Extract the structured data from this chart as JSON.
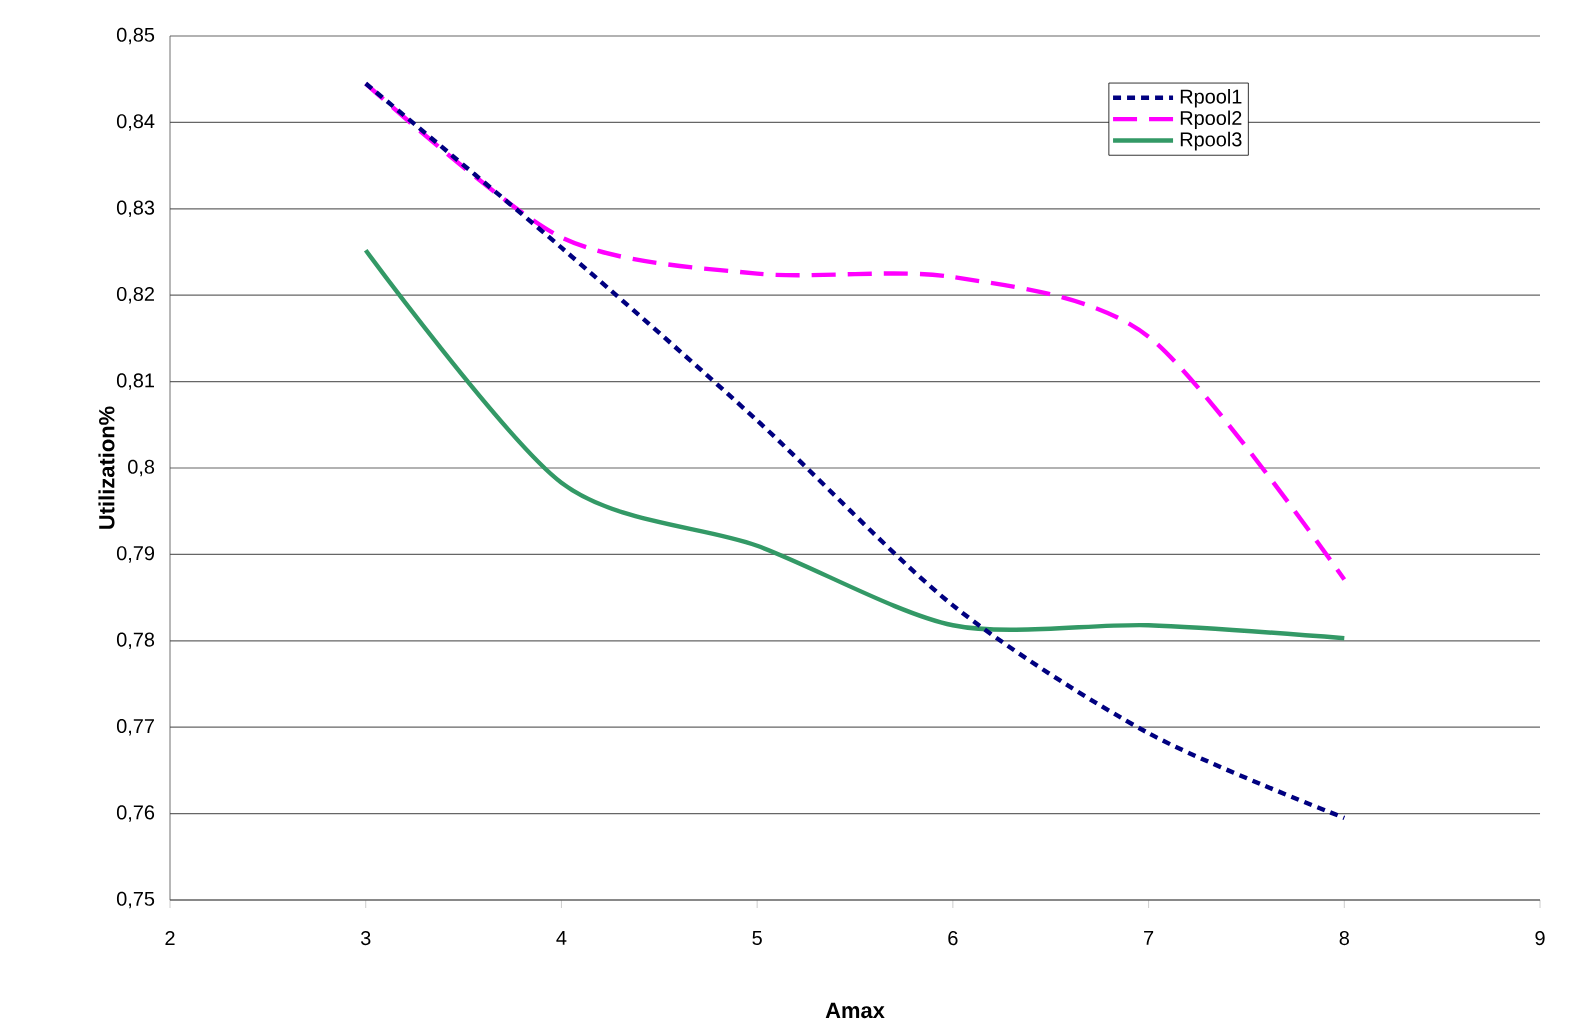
{
  "chart_data": {
    "type": "line",
    "xlabel": "Amax",
    "ylabel": "Utilization%",
    "x": [
      3,
      4,
      5,
      6,
      7,
      8
    ],
    "series": [
      {
        "name": "Rpool1",
        "color": "#000080",
        "line_style": "dotted",
        "values": [
          0.8445,
          0.8255,
          0.8055,
          0.7841,
          0.7693,
          0.7595
        ]
      },
      {
        "name": "Rpool2",
        "color": "#ff00ff",
        "line_style": "dashed",
        "values": [
          0.8445,
          0.8267,
          0.8225,
          0.8221,
          0.8152,
          0.7871
        ]
      },
      {
        "name": "Rpool3",
        "color": "#339966",
        "line_style": "solid",
        "values": [
          0.8252,
          0.7983,
          0.791,
          0.7818,
          0.7818,
          0.7803
        ]
      }
    ],
    "xlim": [
      2,
      9
    ],
    "xticks": [
      2,
      3,
      4,
      5,
      6,
      7,
      8,
      9
    ],
    "ylim": [
      0.75,
      0.85
    ],
    "yticks": [
      {
        "value": 0.75,
        "label": "0,75"
      },
      {
        "value": 0.76,
        "label": "0,76"
      },
      {
        "value": 0.77,
        "label": "0,77"
      },
      {
        "value": 0.78,
        "label": "0,78"
      },
      {
        "value": 0.79,
        "label": "0,79"
      },
      {
        "value": 0.8,
        "label": "0,8"
      },
      {
        "value": 0.81,
        "label": "0,81"
      },
      {
        "value": 0.82,
        "label": "0,82"
      },
      {
        "value": 0.83,
        "label": "0,83"
      },
      {
        "value": 0.84,
        "label": "0,84"
      },
      {
        "value": 0.85,
        "label": "0,85"
      }
    ],
    "grid": "y",
    "legend": "top right",
    "marker": "none"
  }
}
